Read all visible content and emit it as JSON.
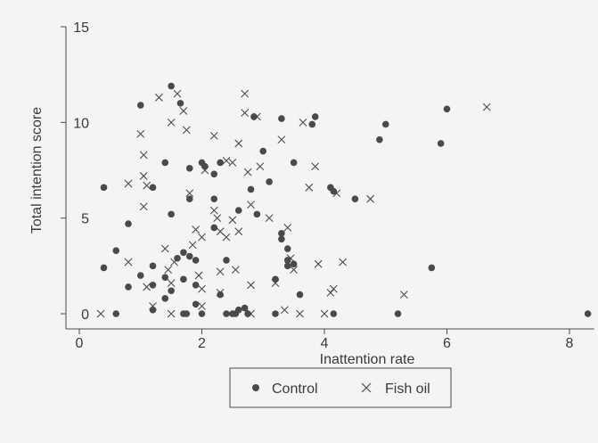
{
  "chart_data": {
    "type": "scatter",
    "title": "",
    "xlabel": "Inattention rate",
    "ylabel": "Total intention score",
    "xlim": [
      0,
      8.4
    ],
    "ylim": [
      0,
      15
    ],
    "x_ticks": [
      0,
      2,
      4,
      6,
      8
    ],
    "y_ticks": [
      0,
      5,
      10,
      15
    ],
    "legend_position": "bottom",
    "colors": {
      "background": "#f4f4f2",
      "axis": "#4a4a4a",
      "marker": "#4a4a4a"
    },
    "series": [
      {
        "name": "Control",
        "marker": "filled-circle",
        "points": [
          [
            0.4,
            6.6
          ],
          [
            0.4,
            2.4
          ],
          [
            0.6,
            3.3
          ],
          [
            0.6,
            0
          ],
          [
            0.8,
            4.7
          ],
          [
            0.8,
            1.4
          ],
          [
            1.0,
            10.9
          ],
          [
            1.0,
            2.0
          ],
          [
            1.2,
            6.6
          ],
          [
            1.2,
            2.5
          ],
          [
            1.2,
            1.5
          ],
          [
            1.2,
            0.2
          ],
          [
            1.4,
            7.9
          ],
          [
            1.4,
            1.9
          ],
          [
            1.4,
            0.8
          ],
          [
            1.5,
            11.9
          ],
          [
            1.5,
            5.2
          ],
          [
            1.5,
            1.2
          ],
          [
            1.6,
            2.9
          ],
          [
            1.65,
            11.0
          ],
          [
            1.7,
            3.2
          ],
          [
            1.7,
            1.8
          ],
          [
            1.7,
            0
          ],
          [
            1.75,
            0
          ],
          [
            1.8,
            6.0
          ],
          [
            1.8,
            7.6
          ],
          [
            1.8,
            3.0
          ],
          [
            1.9,
            2.8
          ],
          [
            1.9,
            1.5
          ],
          [
            1.9,
            0.5
          ],
          [
            2.0,
            7.9
          ],
          [
            2.0,
            0
          ],
          [
            2.05,
            7.7
          ],
          [
            2.2,
            7.3
          ],
          [
            2.2,
            6.0
          ],
          [
            2.2,
            4.5
          ],
          [
            2.3,
            7.9
          ],
          [
            2.3,
            1.0
          ],
          [
            2.4,
            2.8
          ],
          [
            2.4,
            0
          ],
          [
            2.5,
            0
          ],
          [
            2.55,
            0
          ],
          [
            2.6,
            5.4
          ],
          [
            2.6,
            0.2
          ],
          [
            2.7,
            0.3
          ],
          [
            2.75,
            0
          ],
          [
            2.8,
            6.5
          ],
          [
            2.85,
            10.3
          ],
          [
            2.9,
            5.2
          ],
          [
            3.0,
            8.5
          ],
          [
            3.1,
            6.9
          ],
          [
            3.2,
            1.8
          ],
          [
            3.2,
            0
          ],
          [
            3.3,
            10.2
          ],
          [
            3.3,
            4.2
          ],
          [
            3.3,
            3.9
          ],
          [
            3.4,
            2.8
          ],
          [
            3.4,
            2.5
          ],
          [
            3.4,
            3.4
          ],
          [
            3.5,
            7.9
          ],
          [
            3.5,
            2.6
          ],
          [
            3.6,
            1.0
          ],
          [
            3.8,
            9.9
          ],
          [
            3.85,
            10.3
          ],
          [
            4.1,
            6.6
          ],
          [
            4.15,
            6.4
          ],
          [
            4.15,
            0
          ],
          [
            4.5,
            6.0
          ],
          [
            4.9,
            9.1
          ],
          [
            5.0,
            9.9
          ],
          [
            5.2,
            0
          ],
          [
            5.75,
            2.4
          ],
          [
            5.9,
            8.9
          ],
          [
            6.0,
            10.7
          ],
          [
            8.3,
            0
          ]
        ]
      },
      {
        "name": "Fish oil",
        "marker": "x",
        "points": [
          [
            0.35,
            0
          ],
          [
            0.8,
            6.8
          ],
          [
            0.8,
            2.7
          ],
          [
            1.0,
            9.4
          ],
          [
            1.05,
            8.3
          ],
          [
            1.05,
            7.2
          ],
          [
            1.1,
            6.7
          ],
          [
            1.05,
            5.6
          ],
          [
            1.1,
            1.4
          ],
          [
            1.2,
            0.4
          ],
          [
            1.3,
            11.3
          ],
          [
            1.4,
            3.4
          ],
          [
            1.45,
            2.3
          ],
          [
            1.5,
            1.6
          ],
          [
            1.5,
            0
          ],
          [
            1.55,
            2.7
          ],
          [
            1.5,
            10.0
          ],
          [
            1.6,
            11.5
          ],
          [
            1.7,
            10.6
          ],
          [
            1.75,
            9.6
          ],
          [
            1.8,
            6.3
          ],
          [
            1.85,
            3.6
          ],
          [
            1.9,
            4.4
          ],
          [
            1.95,
            2.0
          ],
          [
            2.0,
            4.0
          ],
          [
            2.0,
            1.3
          ],
          [
            2.0,
            0.4
          ],
          [
            2.05,
            7.5
          ],
          [
            2.2,
            9.3
          ],
          [
            2.2,
            5.4
          ],
          [
            2.25,
            5.0
          ],
          [
            2.3,
            4.3
          ],
          [
            2.3,
            2.2
          ],
          [
            2.3,
            1.1
          ],
          [
            2.4,
            8.0
          ],
          [
            2.4,
            4.0
          ],
          [
            2.5,
            7.9
          ],
          [
            2.5,
            4.9
          ],
          [
            2.55,
            2.3
          ],
          [
            2.6,
            8.9
          ],
          [
            2.6,
            4.3
          ],
          [
            2.7,
            11.5
          ],
          [
            2.7,
            10.5
          ],
          [
            2.75,
            7.4
          ],
          [
            2.8,
            5.7
          ],
          [
            2.8,
            1.5
          ],
          [
            2.8,
            0
          ],
          [
            2.9,
            10.3
          ],
          [
            2.95,
            7.7
          ],
          [
            3.1,
            5.0
          ],
          [
            3.2,
            1.6
          ],
          [
            3.3,
            9.1
          ],
          [
            3.35,
            0.2
          ],
          [
            3.4,
            4.5
          ],
          [
            3.45,
            2.9
          ],
          [
            3.5,
            2.3
          ],
          [
            3.6,
            0
          ],
          [
            3.65,
            10.0
          ],
          [
            3.75,
            6.6
          ],
          [
            3.85,
            7.7
          ],
          [
            3.9,
            2.6
          ],
          [
            4.0,
            0
          ],
          [
            4.1,
            1.1
          ],
          [
            4.15,
            1.3
          ],
          [
            4.2,
            6.3
          ],
          [
            4.3,
            2.7
          ],
          [
            4.75,
            6.0
          ],
          [
            5.3,
            1.0
          ],
          [
            6.65,
            10.8
          ]
        ]
      }
    ]
  }
}
